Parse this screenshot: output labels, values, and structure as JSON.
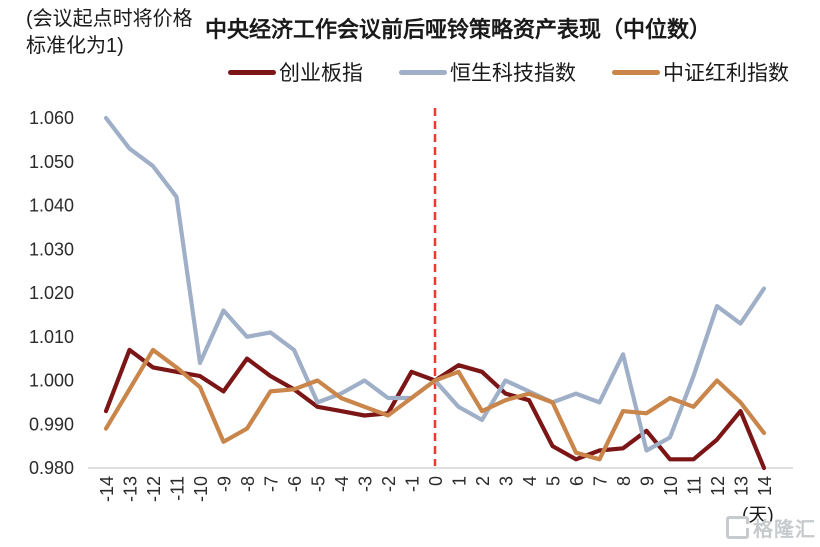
{
  "figure": {
    "note": "(会议起点时将价格标准化为1)",
    "title": "中央经济工作会议前后哑铃策略资产表现（中位数）",
    "x_axis_unit": "(天)",
    "watermark": "格隆汇"
  },
  "chart_data": {
    "type": "line",
    "title": "中央经济工作会议前后哑铃策略资产表现（中位数）",
    "note": "(会议起点时将价格标准化为1)",
    "xlabel": "(天)",
    "ylabel": "",
    "grid": false,
    "legend_position": "top",
    "ylim": [
      0.98,
      1.06
    ],
    "yticks": [
      0.98,
      0.99,
      1.0,
      1.01,
      1.02,
      1.03,
      1.04,
      1.05,
      1.06
    ],
    "ytick_labels": [
      "0.980",
      "0.990",
      "1.000",
      "1.010",
      "1.020",
      "1.030",
      "1.040",
      "1.050",
      "1.060"
    ],
    "x": [
      -14,
      -13,
      -12,
      -11,
      -10,
      -9,
      -8,
      -7,
      -6,
      -5,
      -4,
      -3,
      -2,
      -1,
      0,
      1,
      2,
      3,
      4,
      5,
      6,
      7,
      8,
      9,
      10,
      11,
      12,
      13,
      14
    ],
    "event_line": {
      "x": 0,
      "style": "dashed",
      "color": "#ee3a2e"
    },
    "axis_color": "#d6d6d6",
    "tick_color": "#2b2b2b",
    "series": [
      {
        "name": "创业板指",
        "color": "#7c1516",
        "values": [
          0.993,
          1.007,
          1.003,
          1.002,
          1.001,
          0.9975,
          1.005,
          1.001,
          0.998,
          0.994,
          0.993,
          0.992,
          0.9925,
          1.002,
          1.0,
          1.0035,
          1.002,
          0.997,
          0.9955,
          0.985,
          0.982,
          0.984,
          0.9845,
          0.9885,
          0.982,
          0.982,
          0.9865,
          0.993,
          0.98
        ]
      },
      {
        "name": "恒生科技指数",
        "color": "#9fafc7",
        "values": [
          1.06,
          1.053,
          1.049,
          1.042,
          1.004,
          1.016,
          1.01,
          1.011,
          1.007,
          0.995,
          0.997,
          1.0,
          0.996,
          0.996,
          1.0,
          0.994,
          0.991,
          1.0,
          0.9975,
          0.995,
          0.997,
          0.995,
          1.006,
          0.984,
          0.987,
          1.001,
          1.017,
          1.013,
          1.021
        ]
      },
      {
        "name": "中证红利指数",
        "color": "#c9854a",
        "values": [
          0.989,
          0.998,
          1.007,
          1.003,
          0.9985,
          0.986,
          0.989,
          0.9975,
          0.998,
          1.0,
          0.996,
          0.994,
          0.992,
          0.996,
          1.0,
          1.002,
          0.993,
          0.9955,
          0.997,
          0.995,
          0.9835,
          0.982,
          0.993,
          0.9925,
          0.996,
          0.994,
          1.0,
          0.995,
          0.988
        ]
      }
    ]
  }
}
